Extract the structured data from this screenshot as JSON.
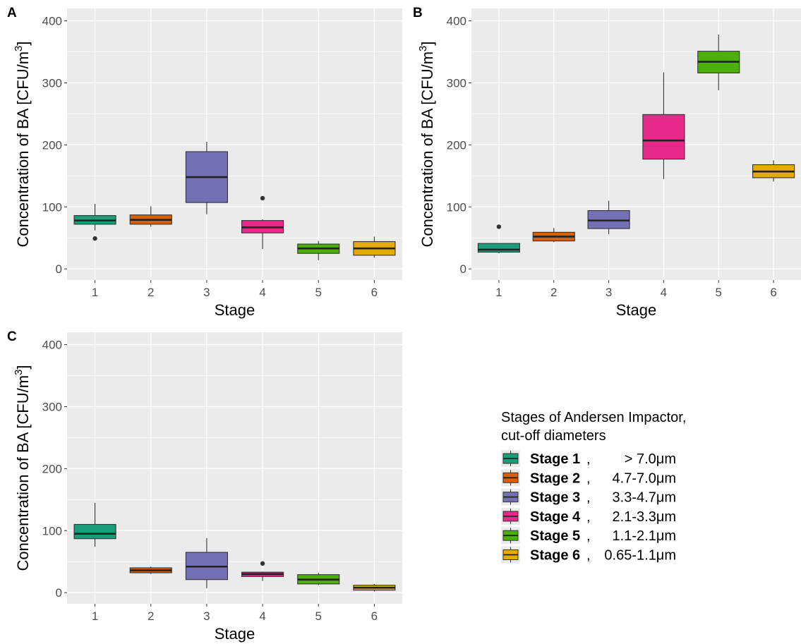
{
  "chart_data": [
    {
      "type": "box",
      "panel_label": "A",
      "xlabel": "Stage",
      "ylabel": "Concentration of BA [CFU/m",
      "ylabel_sup": "3",
      "ylabel_end": "]",
      "ylim": [
        -18,
        420
      ],
      "yticks": [
        0,
        100,
        200,
        300,
        400
      ],
      "categories": [
        "1",
        "2",
        "3",
        "4",
        "5",
        "6"
      ],
      "grid": true,
      "boxes": [
        {
          "stage": "1",
          "min": 62,
          "q1": 72,
          "median": 78,
          "q3": 86,
          "max": 105,
          "outliers": [
            49
          ]
        },
        {
          "stage": "2",
          "min": 68,
          "q1": 72,
          "median": 79,
          "q3": 87,
          "max": 101,
          "outliers": []
        },
        {
          "stage": "3",
          "min": 88,
          "q1": 107,
          "median": 148,
          "q3": 189,
          "max": 205,
          "outliers": []
        },
        {
          "stage": "4",
          "min": 32,
          "q1": 58,
          "median": 67,
          "q3": 78,
          "max": 80,
          "outliers": [
            114
          ]
        },
        {
          "stage": "5",
          "min": 14,
          "q1": 25,
          "median": 33,
          "q3": 40,
          "max": 45,
          "outliers": []
        },
        {
          "stage": "6",
          "min": 18,
          "q1": 22,
          "median": 33,
          "q3": 44,
          "max": 52,
          "outliers": []
        }
      ]
    },
    {
      "type": "box",
      "panel_label": "B",
      "xlabel": "Stage",
      "ylabel": "Concentration of BA [CFU/m",
      "ylabel_sup": "3",
      "ylabel_end": "]",
      "ylim": [
        -18,
        420
      ],
      "yticks": [
        0,
        100,
        200,
        300,
        400
      ],
      "categories": [
        "1",
        "2",
        "3",
        "4",
        "5",
        "6"
      ],
      "grid": true,
      "boxes": [
        {
          "stage": "1",
          "min": 25,
          "q1": 27,
          "median": 31,
          "q3": 41,
          "max": 41,
          "outliers": [
            68
          ]
        },
        {
          "stage": "2",
          "min": 43,
          "q1": 45,
          "median": 52,
          "q3": 59,
          "max": 66,
          "outliers": []
        },
        {
          "stage": "3",
          "min": 56,
          "q1": 65,
          "median": 78,
          "q3": 94,
          "max": 110,
          "outliers": []
        },
        {
          "stage": "4",
          "min": 145,
          "q1": 177,
          "median": 207,
          "q3": 249,
          "max": 317,
          "outliers": []
        },
        {
          "stage": "5",
          "min": 288,
          "q1": 316,
          "median": 334,
          "q3": 351,
          "max": 378,
          "outliers": []
        },
        {
          "stage": "6",
          "min": 141,
          "q1": 147,
          "median": 157,
          "q3": 168,
          "max": 175,
          "outliers": []
        }
      ]
    },
    {
      "type": "box",
      "panel_label": "C",
      "xlabel": "Stage",
      "ylabel": "Concentration of BA [CFU/m",
      "ylabel_sup": "3",
      "ylabel_end": "]",
      "ylim": [
        -18,
        420
      ],
      "yticks": [
        0,
        100,
        200,
        300,
        400
      ],
      "categories": [
        "1",
        "2",
        "3",
        "4",
        "5",
        "6"
      ],
      "grid": true,
      "boxes": [
        {
          "stage": "1",
          "min": 74,
          "q1": 87,
          "median": 95,
          "q3": 110,
          "max": 145,
          "outliers": []
        },
        {
          "stage": "2",
          "min": 30,
          "q1": 32,
          "median": 36,
          "q3": 40,
          "max": 42,
          "outliers": []
        },
        {
          "stage": "3",
          "min": 7,
          "q1": 21,
          "median": 42,
          "q3": 65,
          "max": 88,
          "outliers": []
        },
        {
          "stage": "4",
          "min": 19,
          "q1": 26,
          "median": 30,
          "q3": 33,
          "max": 34,
          "outliers": [
            47
          ]
        },
        {
          "stage": "5",
          "min": 12,
          "q1": 14,
          "median": 21,
          "q3": 29,
          "max": 32,
          "outliers": []
        },
        {
          "stage": "6",
          "min": 2,
          "q1": 4,
          "median": 8,
          "q3": 12,
          "max": 14,
          "outliers": []
        }
      ]
    }
  ],
  "colors": {
    "panel_bg": "#ebebeb",
    "grid": "#ffffff",
    "tick_text": "#4d4d4d",
    "stage_fills": [
      "#1b9e77",
      "#d95f02",
      "#7570b3",
      "#e7298a",
      "#4daf0a",
      "#e6ab02"
    ]
  },
  "legend": {
    "title_line1": "Stages of Andersen Impactor,",
    "title_line2": "cut-off diameters",
    "placement": "bottom-right",
    "items": [
      {
        "name": "Stage 1",
        "range": "> 7.0μm"
      },
      {
        "name": "Stage 2",
        "range": "4.7-7.0μm"
      },
      {
        "name": "Stage 3",
        "range": "3.3-4.7μm"
      },
      {
        "name": "Stage 4",
        "range": "2.1-3.3μm"
      },
      {
        "name": "Stage 5",
        "range": "1.1-2.1μm"
      },
      {
        "name": "Stage 6",
        "range": "0.65-1.1μm"
      }
    ]
  }
}
